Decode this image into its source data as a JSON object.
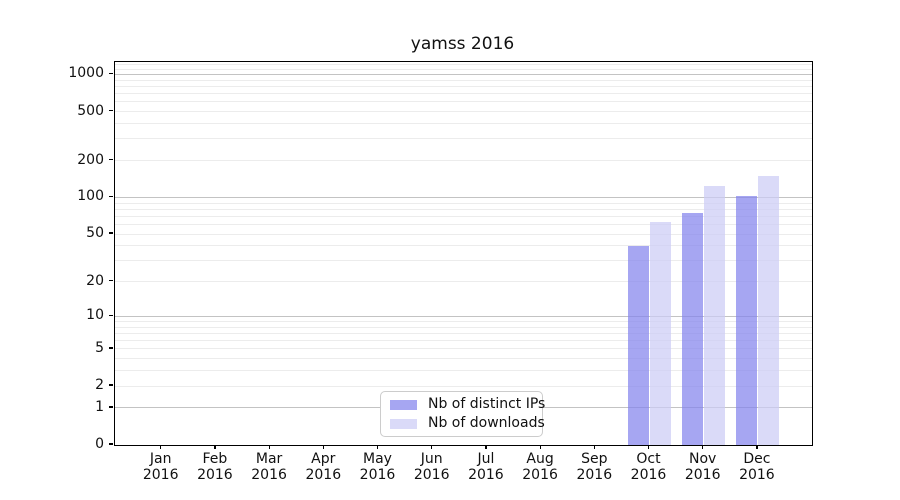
{
  "title": "yamss 2016",
  "chart_data": {
    "type": "bar",
    "title": "yamss 2016",
    "categories": [
      "Jan",
      "Feb",
      "Mar",
      "Apr",
      "May",
      "Jun",
      "Jul",
      "Aug",
      "Sep",
      "Oct",
      "Nov",
      "Dec"
    ],
    "category_year": "2016",
    "series": [
      {
        "name": "Nb of distinct IPs",
        "color": "#a6a6f2",
        "fill": "rgba(131,131,237,0.72)",
        "values": [
          0,
          0,
          0,
          0,
          0,
          0,
          0,
          0,
          0,
          40,
          74,
          103
        ]
      },
      {
        "name": "Nb of downloads",
        "color": "#dadaf8",
        "fill": "rgba(204,204,245,0.72)",
        "values": [
          0,
          0,
          0,
          0,
          0,
          0,
          0,
          0,
          0,
          63,
          125,
          151
        ]
      }
    ],
    "y_axis": {
      "scale": "log10(1+y)",
      "ticks": [
        0,
        1,
        2,
        5,
        10,
        20,
        50,
        100,
        200,
        500,
        1000
      ],
      "top_value": 1260,
      "major_gridlines": [
        1,
        10,
        100,
        1000
      ],
      "minor_gridlines": [
        2,
        3,
        4,
        5,
        6,
        7,
        8,
        9,
        20,
        30,
        40,
        50,
        60,
        70,
        80,
        90,
        200,
        300,
        400,
        500,
        600,
        700,
        800,
        900,
        1100,
        1200
      ]
    },
    "x_axis": {
      "label": "",
      "tick_year_line": "2016"
    },
    "ylabel": "",
    "xlabel": "",
    "grid": true,
    "legend": {
      "position": "lower center",
      "items": [
        "Nb of distinct IPs",
        "Nb of downloads"
      ]
    }
  },
  "colors": {
    "major_grid": "#c3c3c3",
    "minor_grid": "#ececec",
    "spine": "#000000",
    "legend_border": "#cccccc",
    "background": "#ffffff",
    "text": "#111111"
  }
}
